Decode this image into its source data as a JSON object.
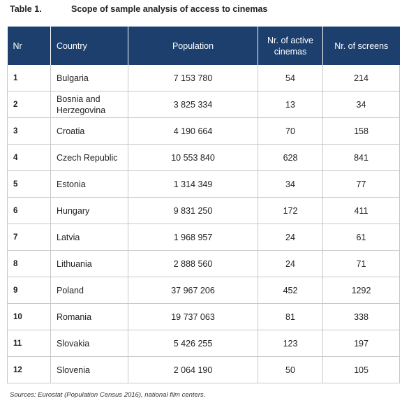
{
  "caption": {
    "number": "Table 1.",
    "title": "Scope of sample analysis of access to cinemas"
  },
  "table": {
    "headers": [
      "Nr",
      "Country",
      "Population",
      "Nr. of active cinemas",
      "Nr. of screens"
    ],
    "rows": [
      {
        "nr": "1",
        "country": "Bulgaria",
        "population": "7 153 780",
        "cinemas": "54",
        "screens": "214"
      },
      {
        "nr": "2",
        "country": "Bosnia and Herzegovina",
        "population": "3 825 334",
        "cinemas": "13",
        "screens": "34"
      },
      {
        "nr": "3",
        "country": "Croatia",
        "population": "4 190 664",
        "cinemas": "70",
        "screens": "158"
      },
      {
        "nr": "4",
        "country": "Czech Republic",
        "population": "10 553 840",
        "cinemas": "628",
        "screens": "841"
      },
      {
        "nr": "5",
        "country": "Estonia",
        "population": "1 314 349",
        "cinemas": "34",
        "screens": "77"
      },
      {
        "nr": "6",
        "country": "Hungary",
        "population": "9 831 250",
        "cinemas": "172",
        "screens": "411"
      },
      {
        "nr": "7",
        "country": "Latvia",
        "population": "1 968 957",
        "cinemas": "24",
        "screens": "61"
      },
      {
        "nr": "8",
        "country": "Lithuania",
        "population": "2 888 560",
        "cinemas": "24",
        "screens": "71"
      },
      {
        "nr": "9",
        "country": "Poland",
        "population": "37 967 206",
        "cinemas": "452",
        "screens": "1292"
      },
      {
        "nr": "10",
        "country": "Romania",
        "population": "19 737 063",
        "cinemas": "81",
        "screens": "338"
      },
      {
        "nr": "11",
        "country": "Slovakia",
        "population": "5 426 255",
        "cinemas": "123",
        "screens": "197"
      },
      {
        "nr": "12",
        "country": "Slovenia",
        "population": "2 064 190",
        "cinemas": "50",
        "screens": "105"
      }
    ]
  },
  "source": "Sources: Eurostat (Population Census 2016), national film centers.",
  "colors": {
    "header_bg": "#1c3f6e",
    "header_text": "#ffffff",
    "grid": "#c8c8c8"
  }
}
